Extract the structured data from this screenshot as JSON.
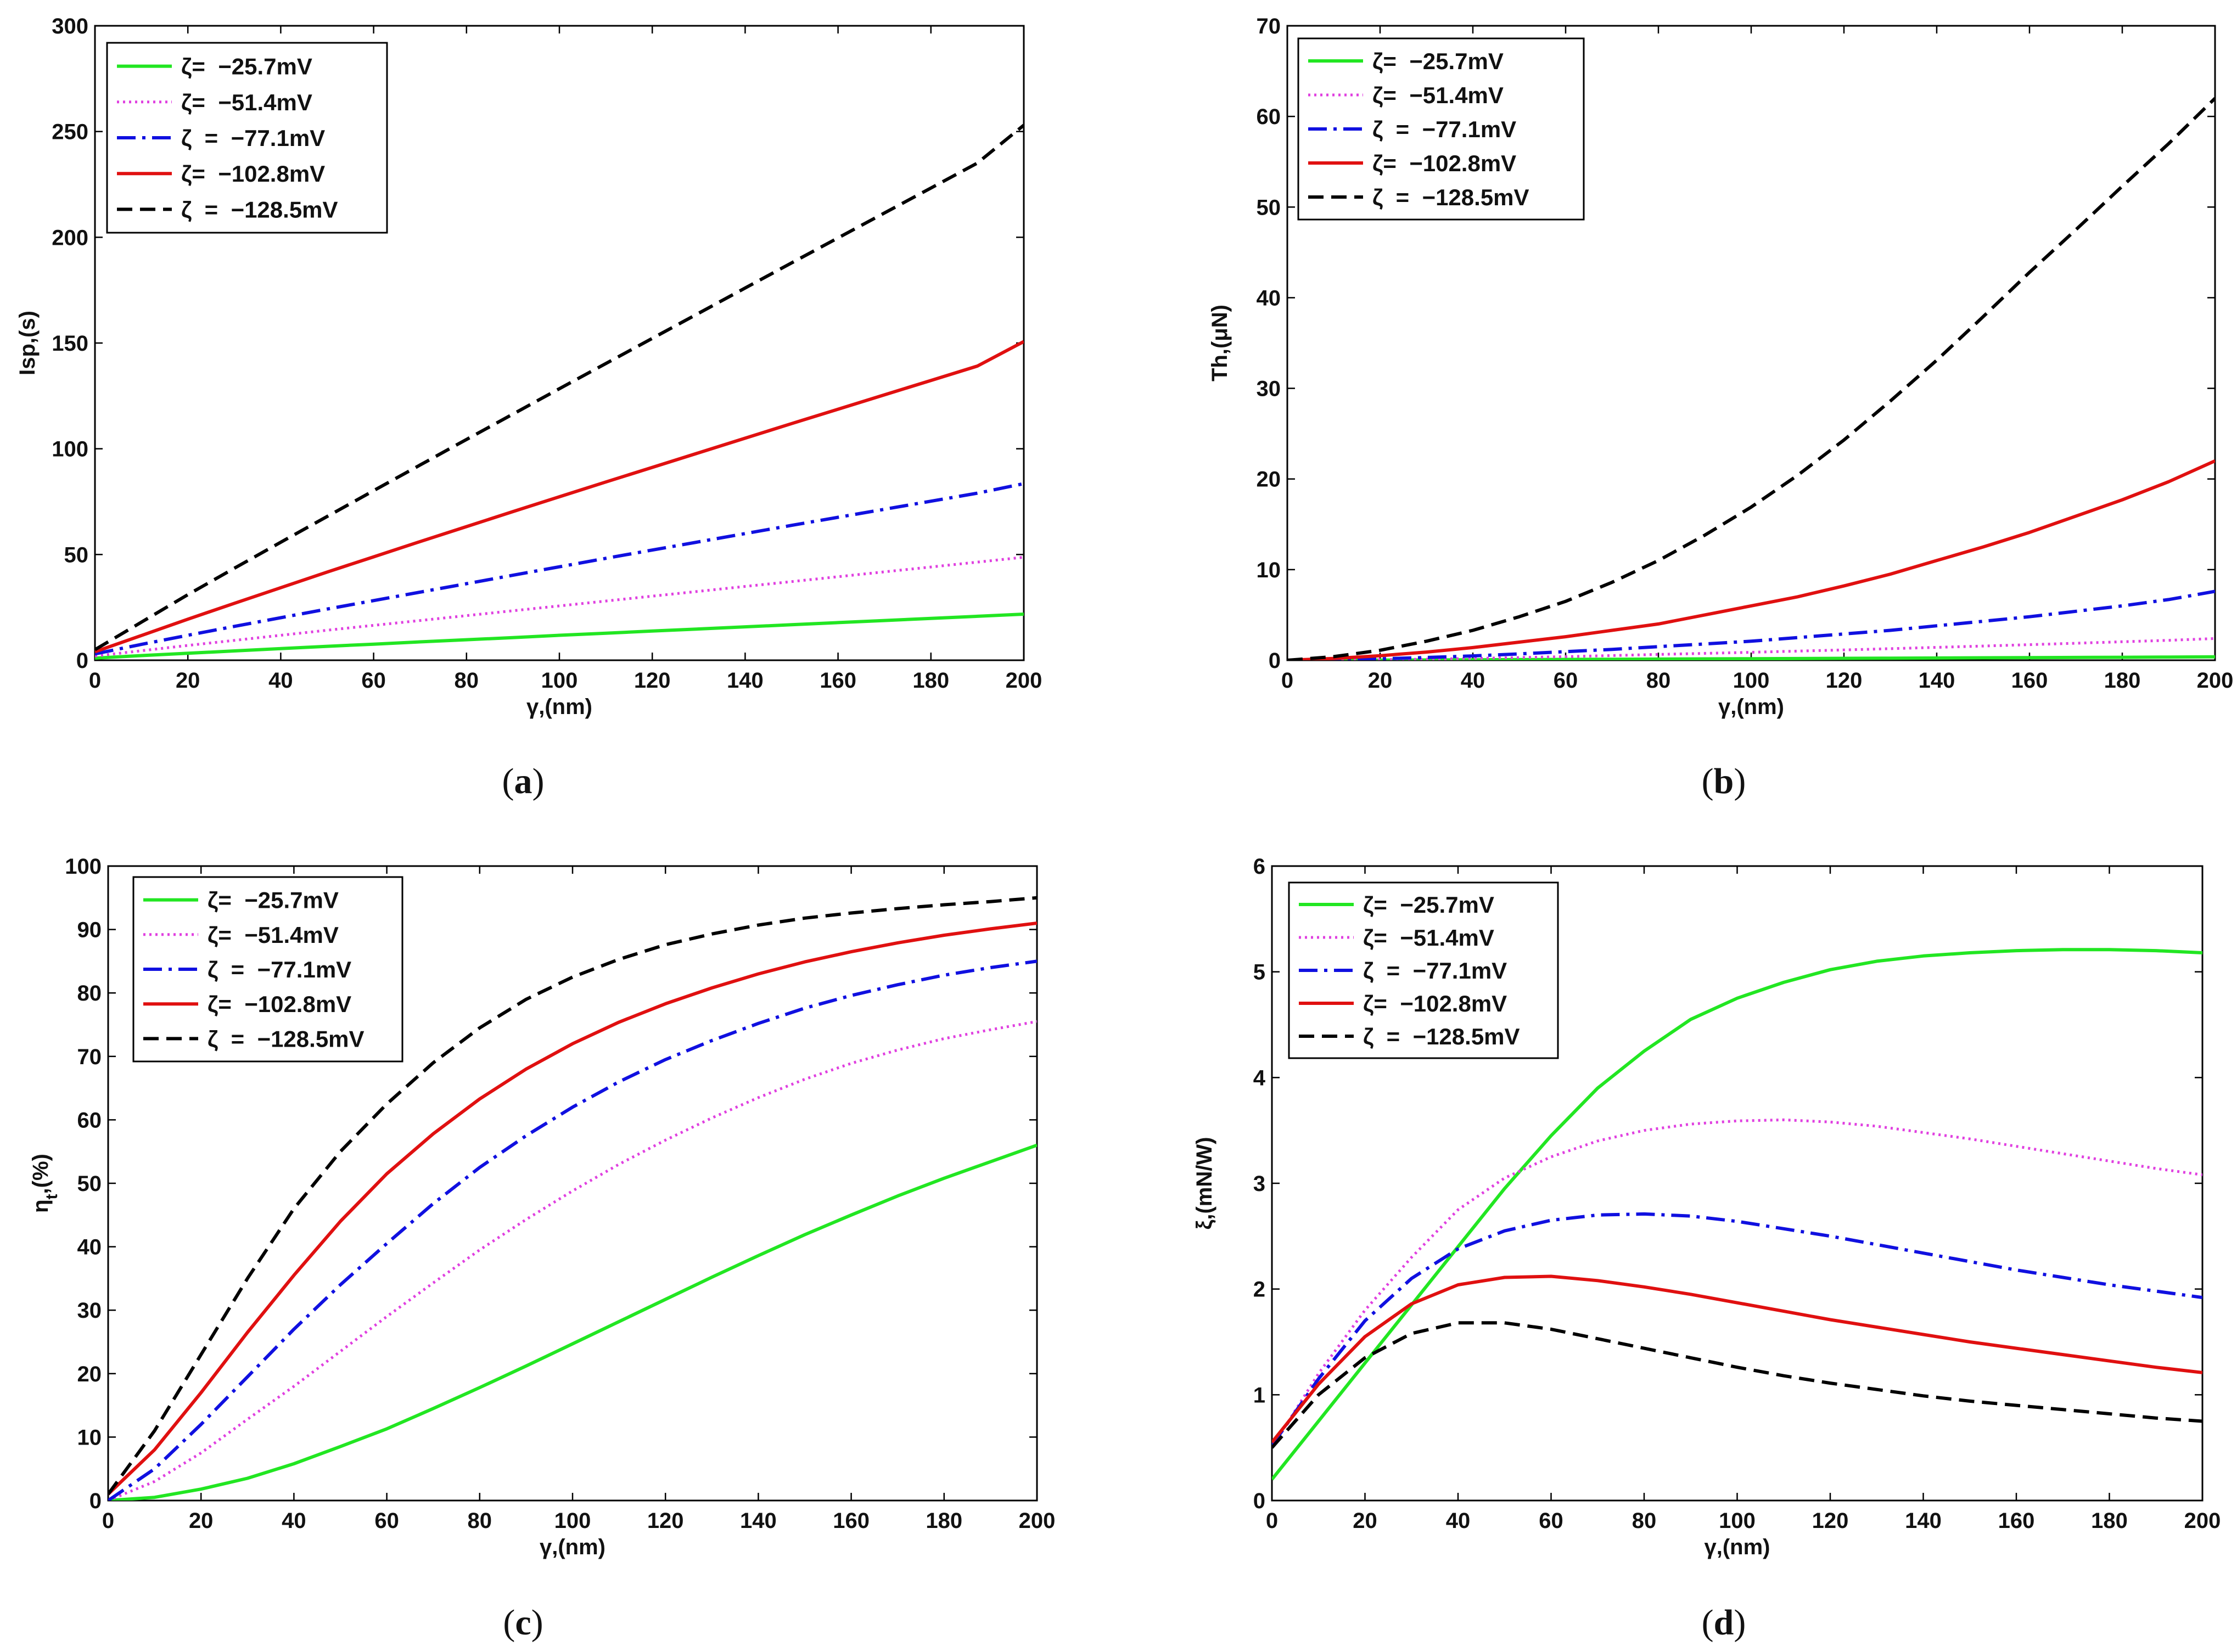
{
  "figure": {
    "colors": {
      "green": "#22e622",
      "magenta": "#e040e0",
      "blue": "#1010e0",
      "red": "#e01010",
      "black": "#000000"
    }
  },
  "chart_data": [
    {
      "type": "line",
      "caption": "a",
      "title": "",
      "xlabel": "γ,(nm)",
      "ylabel": "Isp,(s)",
      "xlim": [
        0,
        200
      ],
      "ylim": [
        0,
        300
      ],
      "xticks": [
        0,
        20,
        40,
        60,
        80,
        100,
        120,
        140,
        160,
        180,
        200
      ],
      "yticks": [
        0,
        50,
        100,
        150,
        200,
        250,
        300
      ],
      "x": [
        0,
        10,
        20,
        30,
        40,
        50,
        60,
        70,
        80,
        90,
        100,
        110,
        120,
        130,
        140,
        150,
        160,
        170,
        180,
        190,
        200
      ],
      "series": [
        {
          "name": "ζ= −25.7mV",
          "label_text": "ζ=  −25.7mV",
          "color": "#22e622",
          "style": "solid",
          "values": [
            1,
            2.2,
            3.3,
            4.4,
            5.5,
            6.6,
            7.6,
            8.7,
            9.7,
            10.7,
            11.8,
            12.8,
            13.8,
            14.8,
            15.8,
            16.8,
            17.8,
            18.8,
            19.8,
            20.8,
            21.8
          ]
        },
        {
          "name": "ζ= −51.4mV",
          "label_text": "ζ=  −51.4mV",
          "color": "#e040e0",
          "style": "dotted",
          "values": [
            2,
            4.5,
            7,
            9.4,
            11.8,
            14.2,
            16.5,
            18.8,
            21.1,
            23.4,
            25.7,
            28,
            30.3,
            32.6,
            34.9,
            37.2,
            39.5,
            41.8,
            44.1,
            46.4,
            48.7
          ]
        },
        {
          "name": "ζ = −77.1mV",
          "label_text": "ζ  =  −77.1mV",
          "color": "#1010e0",
          "style": "dashdot",
          "values": [
            3,
            7.5,
            11.8,
            16,
            20.1,
            24.2,
            28.2,
            32.2,
            36.2,
            40.2,
            44.2,
            48.2,
            52.1,
            56,
            59.9,
            63.8,
            67.6,
            71.4,
            75.2,
            79,
            83.5
          ]
        },
        {
          "name": "ζ= −102.8mV",
          "label_text": "ζ=  −102.8mV",
          "color": "#e01010",
          "style": "solid",
          "values": [
            4,
            11.7,
            19.4,
            26.9,
            34.3,
            41.7,
            48.9,
            56.1,
            63.2,
            70.3,
            77.3,
            84.3,
            91.2,
            98.1,
            105,
            111.9,
            118.7,
            125.5,
            132.3,
            139.1,
            150.7
          ]
        },
        {
          "name": "ζ = −128.5mV",
          "label_text": "ζ  =  −128.5mV",
          "color": "#000000",
          "style": "dashed",
          "values": [
            5,
            18,
            31,
            43.5,
            55.8,
            68,
            80.2,
            92.3,
            104.4,
            116.4,
            128.4,
            140.3,
            152.2,
            164.1,
            176,
            187.9,
            199.7,
            211.5,
            223.3,
            235.1,
            253
          ]
        }
      ]
    },
    {
      "type": "line",
      "caption": "b",
      "title": "",
      "xlabel": "γ,(nm)",
      "ylabel": "Th,(μN)",
      "xlim": [
        0,
        200
      ],
      "ylim": [
        0,
        70
      ],
      "xticks": [
        0,
        20,
        40,
        60,
        80,
        100,
        120,
        140,
        160,
        180,
        200
      ],
      "yticks": [
        0,
        10,
        20,
        30,
        40,
        50,
        60,
        70
      ],
      "x": [
        0,
        10,
        20,
        30,
        40,
        50,
        60,
        70,
        80,
        90,
        100,
        110,
        120,
        130,
        140,
        150,
        160,
        170,
        180,
        190,
        200
      ],
      "series": [
        {
          "name": "ζ= −25.7mV",
          "label_text": "ζ=  −25.7mV",
          "color": "#22e622",
          "style": "solid",
          "values": [
            0,
            0.01,
            0.02,
            0.03,
            0.05,
            0.07,
            0.09,
            0.11,
            0.13,
            0.15,
            0.17,
            0.19,
            0.21,
            0.23,
            0.25,
            0.27,
            0.29,
            0.31,
            0.33,
            0.35,
            0.38
          ]
        },
        {
          "name": "ζ= −51.4mV",
          "label_text": "ζ=  −51.4mV",
          "color": "#e040e0",
          "style": "dotted",
          "values": [
            0,
            0.02,
            0.06,
            0.12,
            0.2,
            0.3,
            0.4,
            0.52,
            0.64,
            0.76,
            0.88,
            1.01,
            1.14,
            1.28,
            1.42,
            1.57,
            1.72,
            1.88,
            2.04,
            2.2,
            2.4
          ]
        },
        {
          "name": "ζ = −77.1mV",
          "label_text": "ζ  =  −77.1mV",
          "color": "#1010e0",
          "style": "dashdot",
          "values": [
            0,
            0.06,
            0.16,
            0.3,
            0.48,
            0.7,
            0.95,
            1.2,
            1.5,
            1.8,
            2.1,
            2.5,
            2.9,
            3.3,
            3.8,
            4.3,
            4.8,
            5.4,
            6,
            6.7,
            7.6
          ]
        },
        {
          "name": "ζ= −102.8mV",
          "label_text": "ζ=  −102.8mV",
          "color": "#e01010",
          "style": "solid",
          "values": [
            0,
            0.2,
            0.5,
            0.9,
            1.4,
            2,
            2.6,
            3.3,
            4,
            5,
            6,
            7,
            8.2,
            9.5,
            11,
            12.5,
            14.1,
            15.9,
            17.7,
            19.7,
            22
          ]
        },
        {
          "name": "ζ = −128.5mV",
          "label_text": "ζ  =  −128.5mV",
          "color": "#000000",
          "style": "dashed",
          "values": [
            0,
            0.4,
            1.1,
            2.1,
            3.3,
            4.8,
            6.5,
            8.6,
            11,
            13.8,
            16.9,
            20.4,
            24.3,
            28.6,
            33.1,
            37.9,
            42.8,
            47.5,
            52.3,
            57,
            62
          ]
        }
      ]
    },
    {
      "type": "line",
      "caption": "c",
      "title": "",
      "xlabel": "γ,(nm)",
      "ylabel": "η_t,(%)",
      "ylabel_main": "η",
      "ylabel_sub": "t",
      "ylabel_tail": ",(%)",
      "xlim": [
        0,
        200
      ],
      "ylim": [
        0,
        100
      ],
      "xticks": [
        0,
        20,
        40,
        60,
        80,
        100,
        120,
        140,
        160,
        180,
        200
      ],
      "yticks": [
        0,
        10,
        20,
        30,
        40,
        50,
        60,
        70,
        80,
        90,
        100
      ],
      "x": [
        0,
        10,
        20,
        30,
        40,
        50,
        60,
        70,
        80,
        90,
        100,
        110,
        120,
        130,
        140,
        150,
        160,
        170,
        180,
        190,
        200
      ],
      "series": [
        {
          "name": "ζ= −25.7mV",
          "label_text": "ζ=  −25.7mV",
          "color": "#22e622",
          "style": "solid",
          "values": [
            0,
            0.5,
            1.8,
            3.5,
            5.8,
            8.5,
            11.3,
            14.5,
            17.8,
            21.2,
            24.7,
            28.2,
            31.7,
            35.2,
            38.6,
            41.9,
            45,
            48,
            50.8,
            53.4,
            56
          ]
        },
        {
          "name": "ζ= −51.4mV",
          "label_text": "ζ=  −51.4mV",
          "color": "#e040e0",
          "style": "dotted",
          "values": [
            0,
            3,
            7.5,
            12.8,
            18,
            23.5,
            29,
            34.3,
            39.5,
            44.3,
            48.8,
            53,
            56.8,
            60.3,
            63.5,
            66.4,
            68.9,
            71,
            72.8,
            74.2,
            75.5
          ]
        },
        {
          "name": "ζ = −77.1mV",
          "label_text": "ζ  =  −77.1mV",
          "color": "#1010e0",
          "style": "dashdot",
          "values": [
            0,
            5,
            12,
            19.5,
            27,
            34,
            40.5,
            46.8,
            52.5,
            57.5,
            62,
            66,
            69.5,
            72.5,
            75.2,
            77.6,
            79.6,
            81.3,
            82.8,
            84,
            85
          ]
        },
        {
          "name": "ζ= −102.8mV",
          "label_text": "ζ=  −102.8mV",
          "color": "#e01010",
          "style": "solid",
          "values": [
            1,
            8,
            17,
            26.5,
            35.5,
            44,
            51.5,
            57.8,
            63.3,
            68,
            72,
            75.4,
            78.3,
            80.8,
            83,
            84.9,
            86.5,
            87.9,
            89.1,
            90.1,
            91
          ]
        },
        {
          "name": "ζ = −128.5mV",
          "label_text": "ζ  =  −128.5mV",
          "color": "#000000",
          "style": "dashed",
          "values": [
            1,
            11,
            23,
            35,
            46,
            55,
            62.5,
            69,
            74.5,
            79,
            82.5,
            85.3,
            87.6,
            89.3,
            90.7,
            91.8,
            92.6,
            93.3,
            93.9,
            94.4,
            95
          ]
        }
      ]
    },
    {
      "type": "line",
      "caption": "d",
      "title": "",
      "xlabel": "γ,(nm)",
      "ylabel": "ξ,(mN/W)",
      "xlim": [
        0,
        200
      ],
      "ylim": [
        0,
        6
      ],
      "xticks": [
        0,
        20,
        40,
        60,
        80,
        100,
        120,
        140,
        160,
        180,
        200
      ],
      "yticks": [
        0,
        1,
        2,
        3,
        4,
        5,
        6
      ],
      "x": [
        0,
        10,
        20,
        30,
        40,
        50,
        60,
        70,
        80,
        90,
        100,
        110,
        120,
        130,
        140,
        150,
        160,
        170,
        180,
        190,
        200
      ],
      "series": [
        {
          "name": "ζ= −25.7mV",
          "label_text": "ζ=  −25.7mV",
          "color": "#22e622",
          "style": "solid",
          "values": [
            0.2,
            0.75,
            1.3,
            1.85,
            2.4,
            2.95,
            3.45,
            3.9,
            4.25,
            4.55,
            4.75,
            4.9,
            5.02,
            5.1,
            5.15,
            5.18,
            5.2,
            5.21,
            5.21,
            5.2,
            5.18
          ]
        },
        {
          "name": "ζ= −51.4mV",
          "label_text": "ζ=  −51.4mV",
          "color": "#e040e0",
          "style": "dotted",
          "values": [
            0.5,
            1.2,
            1.8,
            2.3,
            2.75,
            3.05,
            3.25,
            3.4,
            3.5,
            3.56,
            3.59,
            3.6,
            3.58,
            3.54,
            3.48,
            3.42,
            3.35,
            3.28,
            3.21,
            3.14,
            3.08
          ]
        },
        {
          "name": "ζ = −77.1mV",
          "label_text": "ζ  =  −77.1mV",
          "color": "#1010e0",
          "style": "dashdot",
          "values": [
            0.52,
            1.15,
            1.7,
            2.1,
            2.38,
            2.55,
            2.65,
            2.7,
            2.71,
            2.69,
            2.64,
            2.57,
            2.5,
            2.42,
            2.34,
            2.26,
            2.18,
            2.11,
            2.04,
            1.98,
            1.92
          ]
        },
        {
          "name": "ζ= −102.8mV",
          "label_text": "ζ=  −102.8mV",
          "color": "#e01010",
          "style": "solid",
          "values": [
            0.55,
            1.1,
            1.55,
            1.86,
            2.04,
            2.11,
            2.12,
            2.08,
            2.02,
            1.95,
            1.87,
            1.79,
            1.71,
            1.64,
            1.57,
            1.5,
            1.44,
            1.38,
            1.32,
            1.26,
            1.21
          ]
        },
        {
          "name": "ζ = −128.5mV",
          "label_text": "ζ  =  −128.5mV",
          "color": "#000000",
          "style": "dashed",
          "values": [
            0.5,
            1,
            1.35,
            1.58,
            1.68,
            1.68,
            1.62,
            1.53,
            1.44,
            1.35,
            1.26,
            1.18,
            1.11,
            1.05,
            0.99,
            0.94,
            0.9,
            0.86,
            0.82,
            0.78,
            0.75
          ]
        }
      ]
    }
  ]
}
